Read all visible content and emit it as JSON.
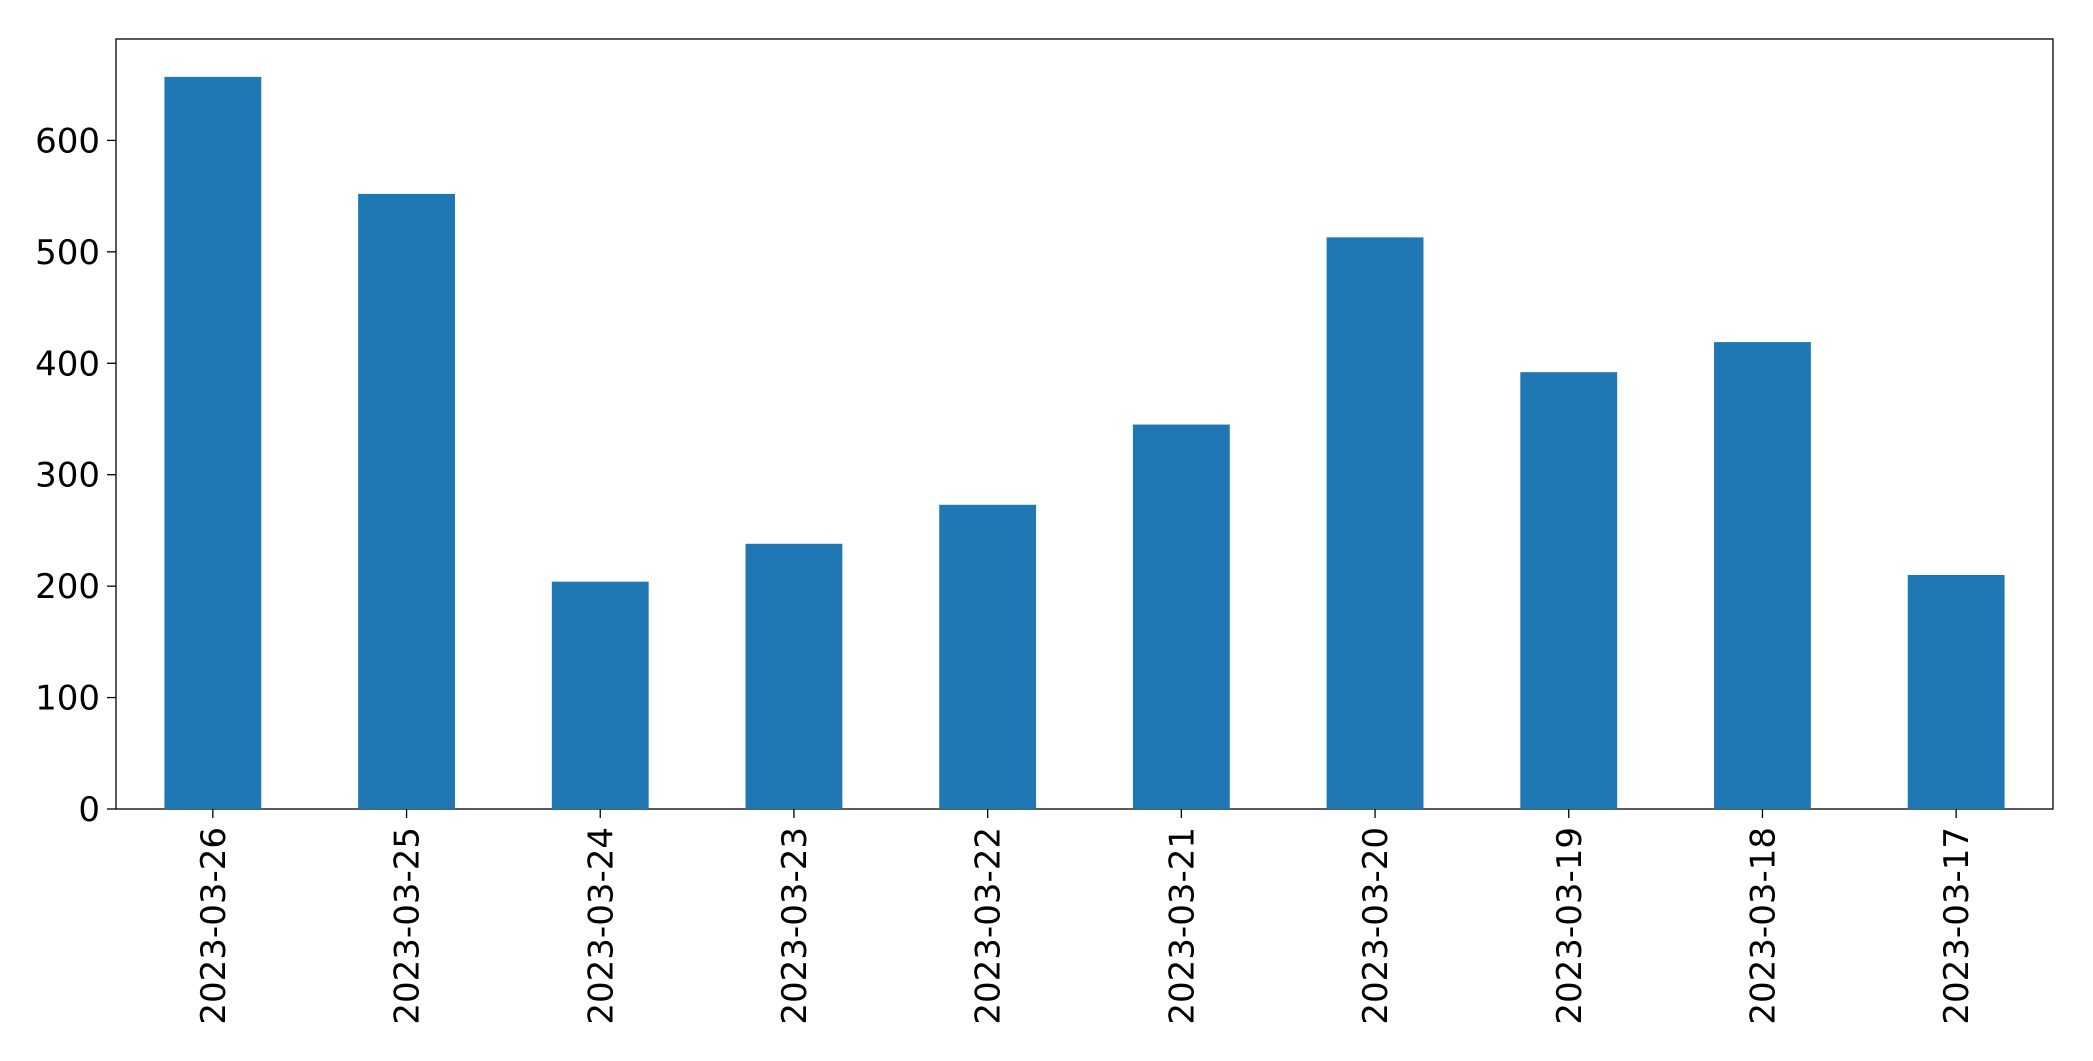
{
  "chart_data": {
    "type": "bar",
    "categories": [
      "2023-03-26",
      "2023-03-25",
      "2023-03-24",
      "2023-03-23",
      "2023-03-22",
      "2023-03-21",
      "2023-03-20",
      "2023-03-19",
      "2023-03-18",
      "2023-03-17"
    ],
    "values": [
      657,
      552,
      204,
      238,
      273,
      345,
      513,
      392,
      419,
      210
    ],
    "color": "#1f77b4",
    "ylim": [
      0,
      691
    ],
    "yticks": [
      0,
      100,
      200,
      300,
      400,
      500,
      600
    ],
    "grid": false
  }
}
